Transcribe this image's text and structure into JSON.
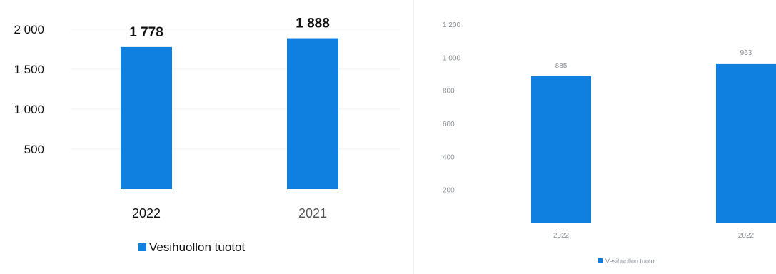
{
  "colors": {
    "bar": "#0f7fe0",
    "grid": "#eef0f2",
    "text": "#111111",
    "muted": "#555555",
    "faint": "#8a8f96"
  },
  "chart_data": [
    {
      "type": "bar",
      "title": "",
      "xlabel": "",
      "ylabel": "",
      "categories": [
        "2022",
        "2021"
      ],
      "series": [
        {
          "name": "Vesihuollon tuotot",
          "values": [
            1778,
            1888
          ]
        }
      ],
      "data_labels": [
        "1 778",
        "1 888"
      ],
      "ylim": [
        0,
        2000
      ],
      "yticks": [
        500,
        1000,
        1500,
        2000
      ],
      "ytick_labels": [
        "500",
        "1 000",
        "1 500",
        "2 000"
      ],
      "grid": true,
      "legend": "bottom"
    },
    {
      "type": "bar",
      "title": "",
      "xlabel": "",
      "ylabel": "",
      "categories": [
        "2022",
        "2022"
      ],
      "series": [
        {
          "name": "Vesihuollon tuotot",
          "values": [
            885,
            963
          ]
        }
      ],
      "data_labels": [
        "885",
        "963"
      ],
      "ylim": [
        0,
        1200
      ],
      "yticks": [
        200,
        400,
        600,
        800,
        1000,
        1200
      ],
      "ytick_labels": [
        "200",
        "400",
        "600",
        "800",
        "1 000",
        "1 200"
      ],
      "grid": false,
      "legend": "bottom"
    }
  ]
}
